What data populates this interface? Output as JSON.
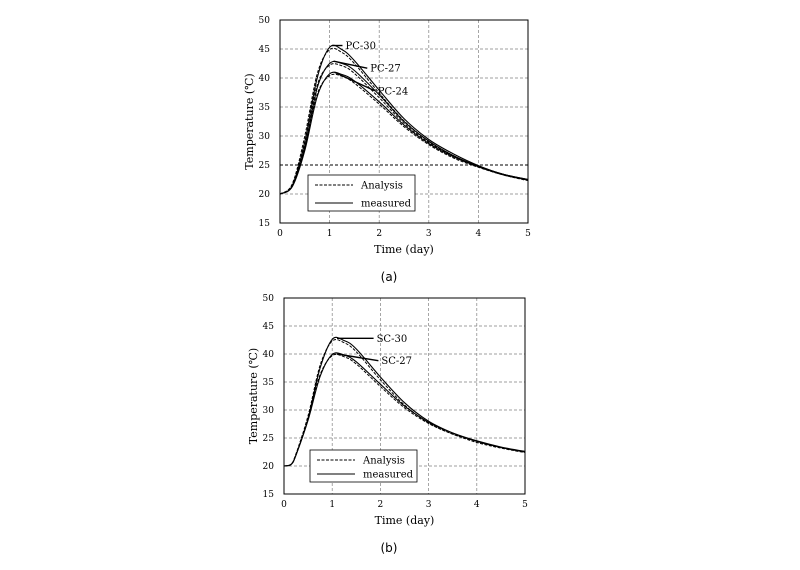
{
  "figure": {
    "captions": [
      "(a)",
      "(b)"
    ]
  },
  "chart_data": [
    {
      "type": "line",
      "caption": "(a)",
      "xlabel": "Time (day)",
      "ylabel": "Temperature (℃)",
      "xlim": [
        0,
        5
      ],
      "ylim": [
        15,
        50
      ],
      "xticks": [
        0,
        1,
        2,
        3,
        4,
        5
      ],
      "yticks": [
        15,
        20,
        25,
        30,
        35,
        40,
        45,
        50
      ],
      "grid": true,
      "legend_position": "bottom-left",
      "legend": [
        {
          "label": "Analysis",
          "style": "dashed"
        },
        {
          "label": "measured",
          "style": "solid"
        }
      ],
      "reference_line_y": 25,
      "annotations": [
        {
          "text": "PC-30",
          "target_x": 1.05,
          "target_y": 45.6,
          "text_x": 1.3,
          "text_y": 45.6
        },
        {
          "text": "PC-27",
          "target_x": 1.08,
          "target_y": 42.9,
          "text_x": 1.8,
          "text_y": 41.7
        },
        {
          "text": "PC-24",
          "target_x": 1.1,
          "target_y": 41.0,
          "text_x": 1.95,
          "text_y": 37.8
        }
      ],
      "series": [
        {
          "name": "PC-30",
          "style": "solid",
          "x": [
            0,
            0.25,
            0.5,
            0.75,
            1,
            1.25,
            1.5,
            2,
            2.5,
            3,
            3.5,
            4,
            4.5,
            5
          ],
          "y": [
            20,
            21.5,
            29,
            40,
            45.3,
            44.9,
            43,
            37.9,
            33,
            29.4,
            26.9,
            24.9,
            23.4,
            22.4
          ]
        },
        {
          "name": "PC-30",
          "style": "dashed",
          "x": [
            0,
            0.25,
            0.5,
            0.75,
            1,
            1.25,
            1.5,
            2,
            2.5,
            3,
            3.5,
            4,
            4.5,
            5
          ],
          "y": [
            20,
            21.8,
            30,
            40.7,
            44.9,
            44.4,
            42.5,
            37.4,
            32.6,
            29.1,
            26.6,
            24.7,
            23.3,
            22.3
          ]
        },
        {
          "name": "PC-27",
          "style": "solid",
          "x": [
            0,
            0.25,
            0.5,
            0.75,
            1,
            1.25,
            1.5,
            2,
            2.5,
            3,
            3.5,
            4,
            4.5,
            5
          ],
          "y": [
            20,
            21.4,
            28,
            38.3,
            42.5,
            42.5,
            41.3,
            37.1,
            32.5,
            29.1,
            26.6,
            24.8,
            23.4,
            22.5
          ]
        },
        {
          "name": "PC-27",
          "style": "dashed",
          "x": [
            0,
            0.25,
            0.5,
            0.75,
            1,
            1.25,
            1.5,
            2,
            2.5,
            3,
            3.5,
            4,
            4.5,
            5
          ],
          "y": [
            20,
            21.6,
            29,
            38.8,
            42.2,
            42.1,
            40.8,
            36.6,
            32.2,
            28.9,
            26.5,
            24.7,
            23.3,
            22.4
          ]
        },
        {
          "name": "PC-24",
          "style": "solid",
          "x": [
            0,
            0.25,
            0.5,
            0.75,
            1,
            1.25,
            1.5,
            2,
            2.5,
            3,
            3.5,
            4,
            4.5,
            5
          ],
          "y": [
            20,
            21.3,
            27.5,
            36.8,
            40.7,
            40.6,
            39.5,
            35.9,
            31.9,
            28.7,
            26.4,
            24.7,
            23.4,
            22.5
          ]
        },
        {
          "name": "PC-24",
          "style": "dashed",
          "x": [
            0,
            0.25,
            0.5,
            0.75,
            1,
            1.25,
            1.5,
            2,
            2.5,
            3,
            3.5,
            4,
            4.5,
            5
          ],
          "y": [
            20,
            21.5,
            28.3,
            37.2,
            40.4,
            40.3,
            39.1,
            35.5,
            31.6,
            28.5,
            26.2,
            24.6,
            23.3,
            22.4
          ]
        }
      ]
    },
    {
      "type": "line",
      "caption": "(b)",
      "xlabel": "Time (day)",
      "ylabel": "Temperature (℃)",
      "xlim": [
        0,
        5
      ],
      "ylim": [
        15,
        50
      ],
      "xticks": [
        0,
        1,
        2,
        3,
        4,
        5
      ],
      "yticks": [
        15,
        20,
        25,
        30,
        35,
        40,
        45,
        50
      ],
      "grid": true,
      "legend_position": "bottom-left",
      "legend": [
        {
          "label": "Analysis",
          "style": "dashed"
        },
        {
          "label": "measured",
          "style": "solid"
        }
      ],
      "annotations": [
        {
          "text": "SC-30",
          "target_x": 1.1,
          "target_y": 42.8,
          "text_x": 1.9,
          "text_y": 42.8
        },
        {
          "text": "SC-27",
          "target_x": 1.1,
          "target_y": 40.0,
          "text_x": 2.0,
          "text_y": 38.8
        }
      ],
      "series": [
        {
          "name": "SC-30",
          "style": "solid",
          "x": [
            0,
            0.15,
            0.25,
            0.5,
            0.75,
            1,
            1.25,
            1.5,
            2,
            2.5,
            3,
            3.5,
            4,
            4.5,
            5
          ],
          "y": [
            20,
            20.3,
            22,
            28.5,
            37.5,
            42.6,
            42.4,
            40.9,
            35.9,
            31.3,
            28,
            25.9,
            24.4,
            23.3,
            22.5
          ]
        },
        {
          "name": "SC-30",
          "style": "dashed",
          "x": [
            0,
            0.15,
            0.25,
            0.5,
            0.75,
            1,
            1.25,
            1.5,
            2,
            2.5,
            3,
            3.5,
            4,
            4.5,
            5
          ],
          "y": [
            20,
            20.3,
            22.2,
            29,
            38,
            42.3,
            42,
            40.4,
            35.4,
            30.9,
            27.7,
            25.7,
            24.2,
            23.2,
            22.4
          ]
        },
        {
          "name": "SC-27",
          "style": "solid",
          "x": [
            0,
            0.15,
            0.25,
            0.5,
            0.75,
            1,
            1.25,
            1.5,
            2,
            2.5,
            3,
            3.5,
            4,
            4.5,
            5
          ],
          "y": [
            20,
            20.3,
            22,
            28.2,
            36,
            39.9,
            39.8,
            38.6,
            34.6,
            30.7,
            27.8,
            25.9,
            24.5,
            23.4,
            22.6
          ]
        },
        {
          "name": "SC-27",
          "style": "dashed",
          "x": [
            0,
            0.15,
            0.25,
            0.5,
            0.75,
            1,
            1.25,
            1.5,
            2,
            2.5,
            3,
            3.5,
            4,
            4.5,
            5
          ],
          "y": [
            20,
            20.3,
            22.2,
            28.6,
            36.3,
            39.7,
            39.5,
            38.2,
            34.2,
            30.4,
            27.6,
            25.7,
            24.4,
            23.3,
            22.5
          ]
        }
      ]
    }
  ]
}
